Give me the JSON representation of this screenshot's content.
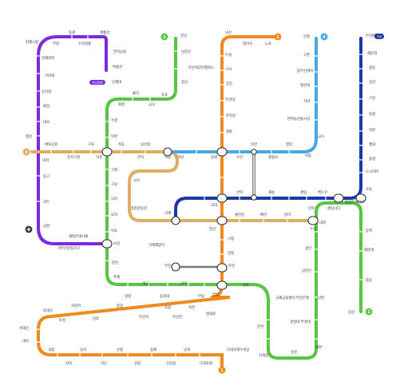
{
  "lines": [
    {
      "id": "1",
      "label": "1",
      "color": "#f0891e"
    },
    {
      "id": "2",
      "label": "2",
      "color": "#57c443"
    },
    {
      "id": "3",
      "label": "3",
      "color": "#dfae62"
    },
    {
      "id": "4",
      "label": "4",
      "color": "#49a7e3"
    },
    {
      "id": "5",
      "label": "부김",
      "color": "#1a3aa8"
    },
    {
      "id": "6",
      "label": "",
      "color": "#7a2be0"
    }
  ],
  "badges": {
    "line5": "부김",
    "purple_station": "부산김해"
  },
  "stations": {
    "purple": [
      "동원",
      "계룡산",
      "김해시청",
      "부원",
      "수로왕릉",
      "연지공원",
      "박물관",
      "인제대",
      "김해대학",
      "가야대",
      "장신대",
      "불암",
      "대사",
      "평강",
      "대저",
      "등구",
      "덕두",
      "공항",
      "괘법르네시떼",
      "서부산유통지구",
      "사상"
    ],
    "orange1": [
      "노포",
      "범어사",
      "남산",
      "두실",
      "구서",
      "장전",
      "부산대",
      "온천장",
      "명륜",
      "동래",
      "교대",
      "연산",
      "시청",
      "양정",
      "부전",
      "서면",
      "범내골",
      "범일",
      "좌천",
      "부산진",
      "초량",
      "부산역",
      "중앙",
      "남포",
      "자갈치",
      "토성",
      "동대신",
      "서대신",
      "대티",
      "괴정",
      "사하",
      "당리",
      "하단",
      "신평",
      "장림",
      "동매",
      "신장림",
      "낫개",
      "다대포항",
      "다대포해수욕장"
    ],
    "green2": [
      "양산",
      "남양산",
      "부산대양산캠퍼스",
      "증산",
      "호포",
      "금곡",
      "동원",
      "율리",
      "화명",
      "수정",
      "덕천",
      "구명",
      "구남",
      "모라",
      "모덕",
      "덕포",
      "사상",
      "감전",
      "주례",
      "냉정",
      "개금",
      "동의대",
      "가야",
      "부암",
      "서면",
      "전포",
      "국제금융센터·부산은행",
      "문현",
      "지게골",
      "못골",
      "대연",
      "경성대·부경대",
      "남천",
      "금련산",
      "광안",
      "수영",
      "민락",
      "센텀시티",
      "벡스코",
      "동백",
      "해운대",
      "중동",
      "장산"
    ],
    "gold3": [
      "수영",
      "망미",
      "배산",
      "물만골",
      "연산",
      "거제",
      "종합운동장",
      "사직",
      "미남",
      "만덕",
      "남산정",
      "숙등",
      "덕천",
      "구포",
      "강서구청",
      "체육공원",
      "대저"
    ],
    "blue4": [
      "미남",
      "동래",
      "수안",
      "낙민",
      "충렬사",
      "명장",
      "서동",
      "금사",
      "반여농산물시장",
      "석대",
      "영산대",
      "동부산대학",
      "고촌",
      "안평"
    ],
    "navy5": [
      "거제",
      "교대",
      "동래",
      "안락",
      "재송",
      "센텀",
      "벡스코",
      "올림픽교차로",
      "우동",
      "해운대",
      "중동",
      "장산",
      "기장",
      "일광",
      "좌천",
      "월내",
      "송정",
      "오시리아",
      "부산원동"
    ],
    "map_extra": [
      "거제해맞이",
      "부전",
      "대화"
    ]
  }
}
